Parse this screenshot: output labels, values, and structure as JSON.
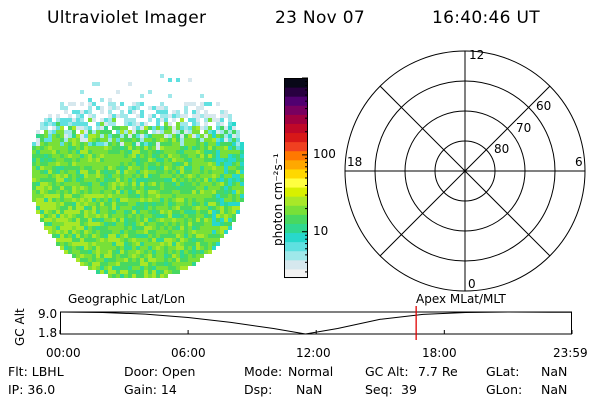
{
  "header": {
    "instrument": "Ultraviolet Imager",
    "date": "23 Nov 07",
    "time": "16:40:46 UT"
  },
  "colorbar": {
    "label": "photon cm⁻²s⁻¹",
    "ticks": [
      {
        "value": 100,
        "label": "100"
      },
      {
        "value": 10,
        "label": "10"
      }
    ],
    "scale": "log",
    "range": [
      2.5,
      1000
    ],
    "colors": [
      "#f2f2f2",
      "#d6e8ee",
      "#9fe8ea",
      "#5fe0e0",
      "#28d8cc",
      "#30d890",
      "#48d860",
      "#78e038",
      "#a8e828",
      "#d8f000",
      "#ffff40",
      "#ffd800",
      "#ffa800",
      "#ff7800",
      "#f04020",
      "#d81818",
      "#c00828",
      "#a00040",
      "#780060",
      "#500070",
      "#280040",
      "#080818"
    ]
  },
  "polar": {
    "mlt_labels": {
      "top": "12",
      "left": "18",
      "right": "6",
      "bottom": "0"
    },
    "lat_labels": [
      "60",
      "70",
      "80"
    ]
  },
  "timeline": {
    "ylabel": "GC Alt",
    "yticks": [
      "9.0",
      "1.8"
    ],
    "left_label": "Geographic Lat/Lon",
    "right_label": "Apex  MLat/MLT",
    "xticks": [
      "00:00",
      "06:00",
      "12:00",
      "18:00",
      "23:59"
    ]
  },
  "footer": {
    "flt": "Flt: LBHL",
    "ip": "IP: 36.0",
    "door": "Door: Open",
    "gain": "Gain: 14",
    "mode_label": "Mode:",
    "mode_value": "Normal",
    "dsp_label": "Dsp:",
    "dsp_value": "NaN",
    "gcalt_label": "GC Alt:",
    "gcalt_value": "7.7 Re",
    "seq_label": "Seq:",
    "seq_value": "39",
    "glat_label": "GLat:",
    "glat_value": "NaN",
    "glon_label": "GLon:",
    "glon_value": "NaN"
  },
  "chart_data": [
    {
      "type": "line",
      "ylabel": "GC Alt",
      "yticks": [
        9.0,
        1.8
      ],
      "ylim": [
        1.8,
        9.0
      ],
      "x_ticks": [
        "00:00",
        "06:00",
        "12:00",
        "18:00",
        "23:59"
      ],
      "x_hours": [
        0,
        2,
        4,
        6,
        8,
        10,
        11.5,
        13,
        15,
        17,
        19,
        21,
        23,
        23.98
      ],
      "y": [
        9.0,
        8.85,
        8.3,
        7.2,
        5.6,
        3.6,
        1.8,
        3.6,
        6.6,
        8.2,
        8.85,
        9.0,
        8.95,
        8.9
      ],
      "current_time_hour": 16.68,
      "current_value": 7.7
    }
  ]
}
